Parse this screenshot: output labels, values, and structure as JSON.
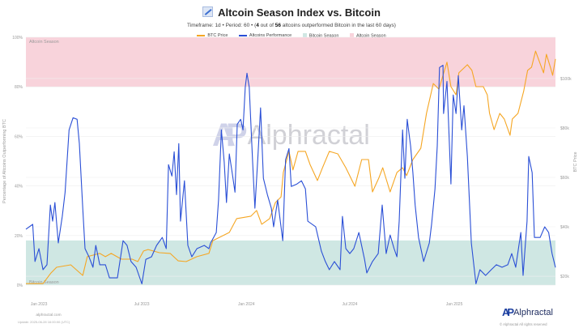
{
  "header": {
    "title": "Altcoin Season Index vs. Bitcoin",
    "title_icon": "chart-increasing-icon",
    "subtitle_prefix": "Timeframe: 1d • Period: 60 • (",
    "subtitle_count": "4",
    "subtitle_mid": " out of ",
    "subtitle_total": "56",
    "subtitle_suffix": " altcoins outperformed Bitcoin in the last 60 days)"
  },
  "watermark": "Alphractal",
  "footer": {
    "site": "alphractal.com",
    "update": "Update: 2025-06-28 16:00:00 (UTC)",
    "logo": "Alphractal",
    "copyright": "© Alphractal All rights reserved"
  },
  "chart_data": {
    "type": "line",
    "title": "Altcoin Season Index vs. Bitcoin",
    "legend_position": "top",
    "grid": true,
    "legend": [
      {
        "name": "BTC Price",
        "kind": "line",
        "color": "#f5a623"
      },
      {
        "name": "Altcoins Performance",
        "kind": "line",
        "color": "#2a4fd6"
      },
      {
        "name": "Bitcoin Season",
        "kind": "band",
        "color": "#cfe7e3"
      },
      {
        "name": "Altcoin Season",
        "kind": "band",
        "color": "#f8d3db"
      }
    ],
    "bands": [
      {
        "name": "Altcoin Season",
        "label": "Altcoin Season",
        "range": [
          80,
          100
        ],
        "color": "#f8d3db"
      },
      {
        "name": "Bitcoin Season",
        "label": "Bitcoin Season",
        "range": [
          0,
          18
        ],
        "color": "#cfe7e3"
      }
    ],
    "xlim": [
      "2022-12-09",
      "2025-06-28"
    ],
    "x_ticks": [
      {
        "date": "2023-01-01",
        "label": "Jan 2023"
      },
      {
        "date": "2023-07-01",
        "label": "Jul 2023"
      },
      {
        "date": "2024-01-01",
        "label": "Jan 2024"
      },
      {
        "date": "2024-07-01",
        "label": "Jul 2024"
      },
      {
        "date": "2025-01-01",
        "label": "Jan 2025"
      }
    ],
    "y_left": {
      "label": "Percentage of Altcoins Outperforming BTC",
      "lim": [
        0,
        100
      ],
      "ticks": [
        {
          "v": 0,
          "label": "0%"
        },
        {
          "v": 20,
          "label": "20%"
        },
        {
          "v": 40,
          "label": "40%"
        },
        {
          "v": 60,
          "label": "60%"
        },
        {
          "v": 80,
          "label": "80%"
        },
        {
          "v": 100,
          "label": "100%"
        }
      ]
    },
    "y_right": {
      "label": "BTC Price",
      "lim": [
        16400,
        116700
      ],
      "ticks": [
        {
          "v": 20000,
          "label": "$20k"
        },
        {
          "v": 40000,
          "label": "$40k"
        },
        {
          "v": 60000,
          "label": "$60k"
        },
        {
          "v": 80000,
          "label": "$80k"
        },
        {
          "v": 100000,
          "label": "$100k"
        }
      ]
    },
    "series": [
      {
        "name": "Altcoins Performance",
        "axis": "left",
        "color": "#2a4fd6",
        "points": [
          [
            "2022-12-09",
            22.5
          ],
          [
            "2022-12-21",
            24.5
          ],
          [
            "2022-12-25",
            9.5
          ],
          [
            "2023-01-01",
            14.7
          ],
          [
            "2023-01-08",
            6.2
          ],
          [
            "2023-01-15",
            8.2
          ],
          [
            "2023-01-21",
            32.3
          ],
          [
            "2023-01-25",
            25.8
          ],
          [
            "2023-01-29",
            33.3
          ],
          [
            "2023-02-04",
            17.0
          ],
          [
            "2023-02-11",
            27.7
          ],
          [
            "2023-02-16",
            37.5
          ],
          [
            "2023-02-23",
            62.6
          ],
          [
            "2023-03-02",
            67.5
          ],
          [
            "2023-03-09",
            66.9
          ],
          [
            "2023-03-13",
            57.1
          ],
          [
            "2023-03-19",
            31.0
          ],
          [
            "2023-03-23",
            14.7
          ],
          [
            "2023-03-30",
            11.4
          ],
          [
            "2023-04-06",
            7.2
          ],
          [
            "2023-04-11",
            16.0
          ],
          [
            "2023-04-18",
            8.2
          ],
          [
            "2023-04-28",
            8.2
          ],
          [
            "2023-05-05",
            2.9
          ],
          [
            "2023-05-19",
            2.9
          ],
          [
            "2023-05-29",
            17.9
          ],
          [
            "2023-06-05",
            16.0
          ],
          [
            "2023-06-12",
            9.5
          ],
          [
            "2023-06-21",
            7.2
          ],
          [
            "2023-07-01",
            0.5
          ],
          [
            "2023-07-08",
            10.4
          ],
          [
            "2023-07-18",
            11.4
          ],
          [
            "2023-07-27",
            16.0
          ],
          [
            "2023-08-06",
            19.2
          ],
          [
            "2023-08-13",
            14.7
          ],
          [
            "2023-08-17",
            48.6
          ],
          [
            "2023-08-23",
            44.0
          ],
          [
            "2023-08-27",
            53.8
          ],
          [
            "2023-08-31",
            36.5
          ],
          [
            "2023-09-04",
            57.1
          ],
          [
            "2023-09-07",
            25.8
          ],
          [
            "2023-09-14",
            42.1
          ],
          [
            "2023-09-20",
            16.0
          ],
          [
            "2023-09-27",
            11.4
          ],
          [
            "2023-10-06",
            14.7
          ],
          [
            "2023-10-19",
            16.0
          ],
          [
            "2023-10-27",
            14.7
          ],
          [
            "2023-10-30",
            17.0
          ],
          [
            "2023-11-09",
            21.2
          ],
          [
            "2023-11-13",
            34.3
          ],
          [
            "2023-11-18",
            62.6
          ],
          [
            "2023-11-23",
            49.6
          ],
          [
            "2023-11-27",
            33.3
          ],
          [
            "2023-12-02",
            52.9
          ],
          [
            "2023-12-07",
            45.4
          ],
          [
            "2023-12-12",
            37.5
          ],
          [
            "2023-12-16",
            64.9
          ],
          [
            "2023-12-22",
            66.9
          ],
          [
            "2023-12-26",
            62.6
          ],
          [
            "2023-12-30",
            79.9
          ],
          [
            "2024-01-02",
            85.5
          ],
          [
            "2024-01-06",
            79.9
          ],
          [
            "2024-01-12",
            49.6
          ],
          [
            "2024-01-16",
            31.0
          ],
          [
            "2024-01-21",
            50.6
          ],
          [
            "2024-01-26",
            71.5
          ],
          [
            "2024-01-31",
            43.1
          ],
          [
            "2024-02-07",
            36.5
          ],
          [
            "2024-02-14",
            31.0
          ],
          [
            "2024-02-18",
            23.5
          ],
          [
            "2024-02-25",
            34.3
          ],
          [
            "2024-03-05",
            17.9
          ],
          [
            "2024-03-10",
            50.6
          ],
          [
            "2024-03-16",
            55.1
          ],
          [
            "2024-03-20",
            39.8
          ],
          [
            "2024-03-30",
            40.8
          ],
          [
            "2024-04-07",
            42.1
          ],
          [
            "2024-04-14",
            38.8
          ],
          [
            "2024-04-18",
            25.8
          ],
          [
            "2024-05-02",
            23.5
          ],
          [
            "2024-05-12",
            13.7
          ],
          [
            "2024-05-19",
            9.5
          ],
          [
            "2024-05-26",
            6.2
          ],
          [
            "2024-06-04",
            9.5
          ],
          [
            "2024-06-14",
            6.2
          ],
          [
            "2024-06-18",
            27.7
          ],
          [
            "2024-06-24",
            14.7
          ],
          [
            "2024-07-01",
            12.7
          ],
          [
            "2024-07-08",
            14.7
          ],
          [
            "2024-07-17",
            21.2
          ],
          [
            "2024-07-27",
            10.4
          ],
          [
            "2024-07-31",
            4.9
          ],
          [
            "2024-08-10",
            9.5
          ],
          [
            "2024-08-20",
            12.7
          ],
          [
            "2024-08-27",
            32.3
          ],
          [
            "2024-09-03",
            12.7
          ],
          [
            "2024-09-10",
            20.2
          ],
          [
            "2024-09-17",
            14.7
          ],
          [
            "2024-09-22",
            11.4
          ],
          [
            "2024-09-26",
            25.8
          ],
          [
            "2024-10-02",
            62.6
          ],
          [
            "2024-10-06",
            43.1
          ],
          [
            "2024-10-10",
            66.9
          ],
          [
            "2024-10-16",
            56.1
          ],
          [
            "2024-10-20",
            45.4
          ],
          [
            "2024-10-24",
            32.3
          ],
          [
            "2024-10-30",
            19.2
          ],
          [
            "2024-11-08",
            9.5
          ],
          [
            "2024-11-18",
            17.0
          ],
          [
            "2024-11-22",
            24.5
          ],
          [
            "2024-11-28",
            38.8
          ],
          [
            "2024-12-02",
            56.1
          ],
          [
            "2024-12-06",
            87.8
          ],
          [
            "2024-12-12",
            88.7
          ],
          [
            "2024-12-13",
            69.2
          ],
          [
            "2024-12-19",
            82.2
          ],
          [
            "2024-12-26",
            40.8
          ],
          [
            "2024-12-30",
            76.7
          ],
          [
            "2025-01-04",
            69.2
          ],
          [
            "2025-01-08",
            84.5
          ],
          [
            "2025-01-14",
            62.6
          ],
          [
            "2025-01-18",
            72.4
          ],
          [
            "2025-01-24",
            51.9
          ],
          [
            "2025-01-31",
            17.0
          ],
          [
            "2025-02-08",
            0.5
          ],
          [
            "2025-02-15",
            6.2
          ],
          [
            "2025-02-25",
            3.9
          ],
          [
            "2025-03-07",
            6.2
          ],
          [
            "2025-03-16",
            8.2
          ],
          [
            "2025-03-26",
            7.2
          ],
          [
            "2025-04-05",
            8.2
          ],
          [
            "2025-04-12",
            12.7
          ],
          [
            "2025-04-19",
            7.2
          ],
          [
            "2025-04-28",
            21.2
          ],
          [
            "2025-05-02",
            3.9
          ],
          [
            "2025-05-09",
            25.8
          ],
          [
            "2025-05-12",
            51.9
          ],
          [
            "2025-05-18",
            45.4
          ],
          [
            "2025-05-22",
            19.2
          ],
          [
            "2025-06-01",
            19.2
          ],
          [
            "2025-06-09",
            23.5
          ],
          [
            "2025-06-16",
            21.2
          ],
          [
            "2025-06-22",
            12.7
          ],
          [
            "2025-06-28",
            7.1
          ]
        ]
      },
      {
        "name": "BTC Price",
        "axis": "right",
        "color": "#f5a623",
        "points": [
          [
            "2022-12-09",
            17000
          ],
          [
            "2023-01-08",
            17000
          ],
          [
            "2023-01-22",
            21300
          ],
          [
            "2023-02-01",
            23600
          ],
          [
            "2023-02-26",
            24600
          ],
          [
            "2023-03-19",
            20300
          ],
          [
            "2023-03-27",
            27900
          ],
          [
            "2023-04-18",
            29200
          ],
          [
            "2023-04-28",
            27900
          ],
          [
            "2023-05-08",
            29200
          ],
          [
            "2023-05-26",
            26900
          ],
          [
            "2023-06-14",
            26900
          ],
          [
            "2023-06-24",
            25900
          ],
          [
            "2023-07-04",
            30200
          ],
          [
            "2023-07-12",
            30800
          ],
          [
            "2023-08-01",
            29500
          ],
          [
            "2023-08-20",
            29200
          ],
          [
            "2023-09-03",
            26200
          ],
          [
            "2023-09-17",
            25900
          ],
          [
            "2023-10-06",
            27900
          ],
          [
            "2023-10-27",
            29200
          ],
          [
            "2023-11-03",
            34400
          ],
          [
            "2023-12-02",
            37700
          ],
          [
            "2023-12-15",
            43300
          ],
          [
            "2024-01-09",
            44300
          ],
          [
            "2024-01-19",
            46600
          ],
          [
            "2024-01-28",
            41000
          ],
          [
            "2024-02-11",
            43300
          ],
          [
            "2024-02-21",
            49800
          ],
          [
            "2024-03-02",
            52100
          ],
          [
            "2024-03-06",
            62000
          ],
          [
            "2024-03-16",
            70500
          ],
          [
            "2024-03-23",
            63000
          ],
          [
            "2024-04-01",
            70500
          ],
          [
            "2024-04-14",
            70500
          ],
          [
            "2024-04-22",
            65200
          ],
          [
            "2024-05-05",
            58700
          ],
          [
            "2024-05-14",
            63900
          ],
          [
            "2024-05-26",
            70500
          ],
          [
            "2024-06-10",
            69500
          ],
          [
            "2024-06-24",
            63900
          ],
          [
            "2024-07-10",
            56400
          ],
          [
            "2024-07-22",
            67200
          ],
          [
            "2024-08-03",
            67200
          ],
          [
            "2024-08-10",
            54100
          ],
          [
            "2024-08-21",
            59700
          ],
          [
            "2024-08-28",
            63900
          ],
          [
            "2024-09-10",
            54100
          ],
          [
            "2024-09-22",
            62000
          ],
          [
            "2024-10-02",
            63900
          ],
          [
            "2024-10-09",
            60700
          ],
          [
            "2024-10-20",
            67200
          ],
          [
            "2024-11-03",
            71800
          ],
          [
            "2024-11-13",
            85900
          ],
          [
            "2024-11-25",
            98000
          ],
          [
            "2024-12-05",
            95700
          ],
          [
            "2024-12-12",
            101300
          ],
          [
            "2024-12-19",
            106600
          ],
          [
            "2024-12-26",
            96700
          ],
          [
            "2025-01-04",
            93400
          ],
          [
            "2025-01-09",
            102300
          ],
          [
            "2025-01-24",
            105600
          ],
          [
            "2025-02-01",
            103300
          ],
          [
            "2025-02-08",
            96700
          ],
          [
            "2025-02-21",
            96700
          ],
          [
            "2025-02-28",
            93400
          ],
          [
            "2025-03-04",
            85900
          ],
          [
            "2025-03-12",
            79300
          ],
          [
            "2025-03-22",
            85900
          ],
          [
            "2025-03-30",
            83600
          ],
          [
            "2025-04-09",
            77000
          ],
          [
            "2025-04-13",
            83600
          ],
          [
            "2025-04-23",
            85900
          ],
          [
            "2025-05-03",
            94800
          ],
          [
            "2025-05-10",
            103300
          ],
          [
            "2025-05-17",
            104600
          ],
          [
            "2025-05-24",
            111100
          ],
          [
            "2025-05-31",
            106600
          ],
          [
            "2025-06-07",
            102300
          ],
          [
            "2025-06-12",
            109800
          ],
          [
            "2025-06-19",
            104600
          ],
          [
            "2025-06-23",
            101300
          ],
          [
            "2025-06-28",
            107900
          ]
        ]
      }
    ]
  }
}
